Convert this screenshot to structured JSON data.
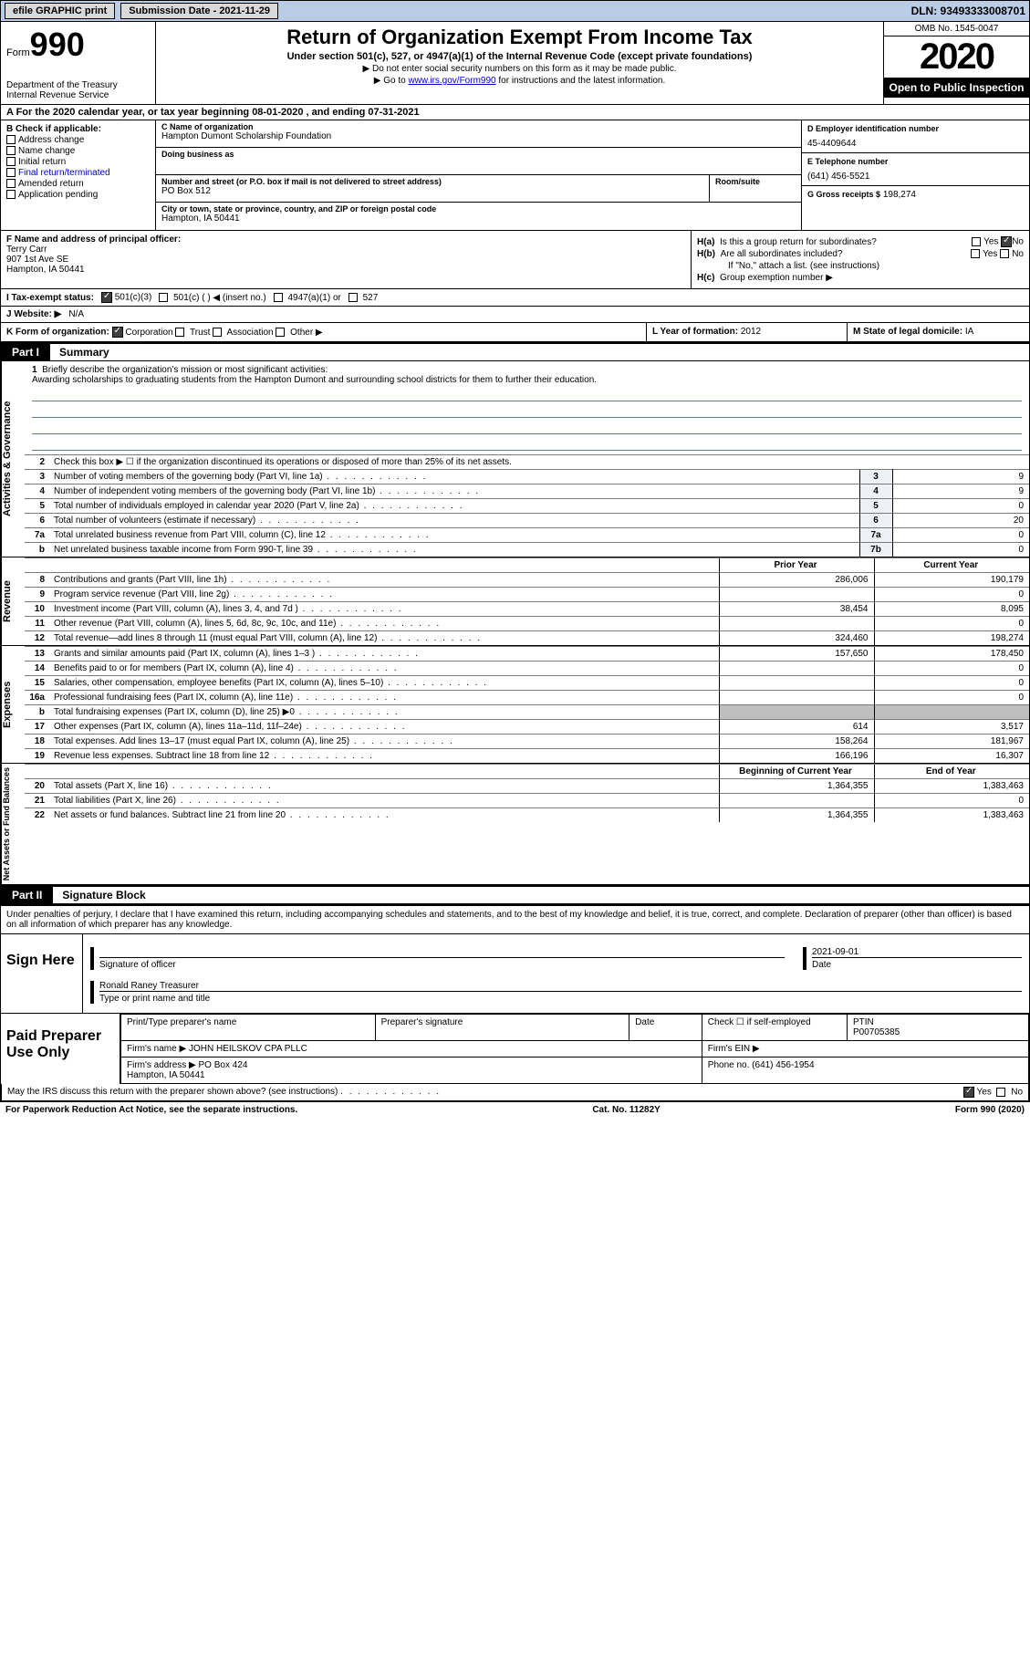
{
  "topbar": {
    "efile": "efile GRAPHIC print",
    "submission": "Submission Date - 2021-11-29",
    "dln": "DLN: 93493333008701"
  },
  "header": {
    "form_label": "Form",
    "form_num": "990",
    "dept": "Department of the Treasury\nInternal Revenue Service",
    "title": "Return of Organization Exempt From Income Tax",
    "sub": "Under section 501(c), 527, or 4947(a)(1) of the Internal Revenue Code (except private foundations)",
    "arrow1": "▶ Do not enter social security numbers on this form as it may be made public.",
    "arrow2_pre": "▶ Go to ",
    "arrow2_link": "www.irs.gov/Form990",
    "arrow2_post": " for instructions and the latest information.",
    "omb": "OMB No. 1545-0047",
    "year": "2020",
    "inspect": "Open to Public Inspection"
  },
  "row_a": "A For the 2020 calendar year, or tax year beginning 08-01-2020   , and ending 07-31-2021",
  "col_b": {
    "hdr": "B Check if applicable:",
    "opts": [
      "Address change",
      "Name change",
      "Initial return",
      "Final return/terminated",
      "Amended return",
      "Application pending"
    ]
  },
  "col_c": {
    "name_lbl": "C Name of organization",
    "name": "Hampton Dumont Scholarship Foundation",
    "dba_lbl": "Doing business as",
    "dba": "",
    "street_lbl": "Number and street (or P.O. box if mail is not delivered to street address)",
    "room_lbl": "Room/suite",
    "street": "PO Box 512",
    "city_lbl": "City or town, state or province, country, and ZIP or foreign postal code",
    "city": "Hampton, IA  50441"
  },
  "col_d": {
    "ein_lbl": "D Employer identification number",
    "ein": "45-4409644",
    "tel_lbl": "E Telephone number",
    "tel": "(641) 456-5521",
    "gross_lbl": "G Gross receipts $",
    "gross": "198,274"
  },
  "col_f": {
    "lbl": "F Name and address of principal officer:",
    "name": "Terry Carr",
    "addr1": "907 1st Ave SE",
    "addr2": "Hampton, IA  50441"
  },
  "col_h": {
    "ha": "Is this a group return for subordinates?",
    "ha_ans": "No",
    "hb": "Are all subordinates included?",
    "hb_note": "If \"No,\" attach a list. (see instructions)",
    "hc": "Group exemption number ▶"
  },
  "row_i": {
    "lbl": "I   Tax-exempt status:",
    "opts": [
      "501(c)(3)",
      "501(c) (  ) ◀ (insert no.)",
      "4947(a)(1) or",
      "527"
    ]
  },
  "row_j": {
    "lbl": "J   Website: ▶",
    "val": "N/A"
  },
  "row_k": {
    "lbl": "K Form of organization:",
    "opts": [
      "Corporation",
      "Trust",
      "Association",
      "Other ▶"
    ],
    "l_lbl": "L Year of formation:",
    "l_val": "2012",
    "m_lbl": "M State of legal domicile:",
    "m_val": "IA"
  },
  "part1": {
    "tag": "Part I",
    "title": "Summary",
    "line1_lbl": "Briefly describe the organization's mission or most significant activities:",
    "line1_txt": "Awarding scholarships to graduating students from the Hampton Dumont and surrounding school districts for them to further their education.",
    "sidebar_gov": "Activities & Governance",
    "sidebar_rev": "Revenue",
    "sidebar_exp": "Expenses",
    "sidebar_net": "Net Assets or Fund Balances",
    "gov_rows": [
      {
        "n": "2",
        "t": "Check this box ▶ ☐  if the organization discontinued its operations or disposed of more than 25% of its net assets.",
        "box": "",
        "v": ""
      },
      {
        "n": "3",
        "t": "Number of voting members of the governing body (Part VI, line 1a)",
        "box": "3",
        "v": "9"
      },
      {
        "n": "4",
        "t": "Number of independent voting members of the governing body (Part VI, line 1b)",
        "box": "4",
        "v": "9"
      },
      {
        "n": "5",
        "t": "Total number of individuals employed in calendar year 2020 (Part V, line 2a)",
        "box": "5",
        "v": "0"
      },
      {
        "n": "6",
        "t": "Total number of volunteers (estimate if necessary)",
        "box": "6",
        "v": "20"
      },
      {
        "n": "7a",
        "t": "Total unrelated business revenue from Part VIII, column (C), line 12",
        "box": "7a",
        "v": "0"
      },
      {
        "n": "b",
        "t": "Net unrelated business taxable income from Form 990-T, line 39",
        "box": "7b",
        "v": "0"
      }
    ],
    "col_prior": "Prior Year",
    "col_curr": "Current Year",
    "rev_rows": [
      {
        "n": "8",
        "t": "Contributions and grants (Part VIII, line 1h)",
        "p": "286,006",
        "c": "190,179"
      },
      {
        "n": "9",
        "t": "Program service revenue (Part VIII, line 2g)",
        "p": "",
        "c": "0"
      },
      {
        "n": "10",
        "t": "Investment income (Part VIII, column (A), lines 3, 4, and 7d )",
        "p": "38,454",
        "c": "8,095"
      },
      {
        "n": "11",
        "t": "Other revenue (Part VIII, column (A), lines 5, 6d, 8c, 9c, 10c, and 11e)",
        "p": "",
        "c": "0"
      },
      {
        "n": "12",
        "t": "Total revenue—add lines 8 through 11 (must equal Part VIII, column (A), line 12)",
        "p": "324,460",
        "c": "198,274"
      }
    ],
    "exp_rows": [
      {
        "n": "13",
        "t": "Grants and similar amounts paid (Part IX, column (A), lines 1–3 )",
        "p": "157,650",
        "c": "178,450"
      },
      {
        "n": "14",
        "t": "Benefits paid to or for members (Part IX, column (A), line 4)",
        "p": "",
        "c": "0"
      },
      {
        "n": "15",
        "t": "Salaries, other compensation, employee benefits (Part IX, column (A), lines 5–10)",
        "p": "",
        "c": "0"
      },
      {
        "n": "16a",
        "t": "Professional fundraising fees (Part IX, column (A), line 11e)",
        "p": "",
        "c": "0"
      },
      {
        "n": "b",
        "t": "Total fundraising expenses (Part IX, column (D), line 25) ▶0",
        "p": "shade",
        "c": "shade"
      },
      {
        "n": "17",
        "t": "Other expenses (Part IX, column (A), lines 11a–11d, 11f–24e)",
        "p": "614",
        "c": "3,517"
      },
      {
        "n": "18",
        "t": "Total expenses. Add lines 13–17 (must equal Part IX, column (A), line 25)",
        "p": "158,264",
        "c": "181,967"
      },
      {
        "n": "19",
        "t": "Revenue less expenses. Subtract line 18 from line 12",
        "p": "166,196",
        "c": "16,307"
      }
    ],
    "col_beg": "Beginning of Current Year",
    "col_end": "End of Year",
    "net_rows": [
      {
        "n": "20",
        "t": "Total assets (Part X, line 16)",
        "p": "1,364,355",
        "c": "1,383,463"
      },
      {
        "n": "21",
        "t": "Total liabilities (Part X, line 26)",
        "p": "",
        "c": "0"
      },
      {
        "n": "22",
        "t": "Net assets or fund balances. Subtract line 21 from line 20",
        "p": "1,364,355",
        "c": "1,383,463"
      }
    ]
  },
  "part2": {
    "tag": "Part II",
    "title": "Signature Block",
    "decl": "Under penalties of perjury, I declare that I have examined this return, including accompanying schedules and statements, and to the best of my knowledge and belief, it is true, correct, and complete. Declaration of preparer (other than officer) is based on all information of which preparer has any knowledge.",
    "sign_here": "Sign Here",
    "sig_of_officer": "Signature of officer",
    "sig_date": "2021-09-01",
    "date_lbl": "Date",
    "officer_name": "Ronald Raney Treasurer",
    "type_lbl": "Type or print name and title",
    "paid_prep": "Paid Preparer Use Only",
    "prep_name_lbl": "Print/Type preparer's name",
    "prep_sig_lbl": "Preparer's signature",
    "prep_date_lbl": "Date",
    "check_self": "Check ☐ if self-employed",
    "ptin_lbl": "PTIN",
    "ptin": "P00705385",
    "firm_name_lbl": "Firm's name   ▶",
    "firm_name": "JOHN HEILSKOV CPA PLLC",
    "firm_ein_lbl": "Firm's EIN ▶",
    "firm_addr_lbl": "Firm's address ▶",
    "firm_addr": "PO Box 424\nHampton, IA  50441",
    "firm_phone_lbl": "Phone no.",
    "firm_phone": "(641) 456-1954",
    "discuss": "May the IRS discuss this return with the preparer shown above? (see instructions)",
    "discuss_ans": "Yes"
  },
  "footer": {
    "pra": "For Paperwork Reduction Act Notice, see the separate instructions.",
    "cat": "Cat. No. 11282Y",
    "form": "Form 990 (2020)"
  }
}
